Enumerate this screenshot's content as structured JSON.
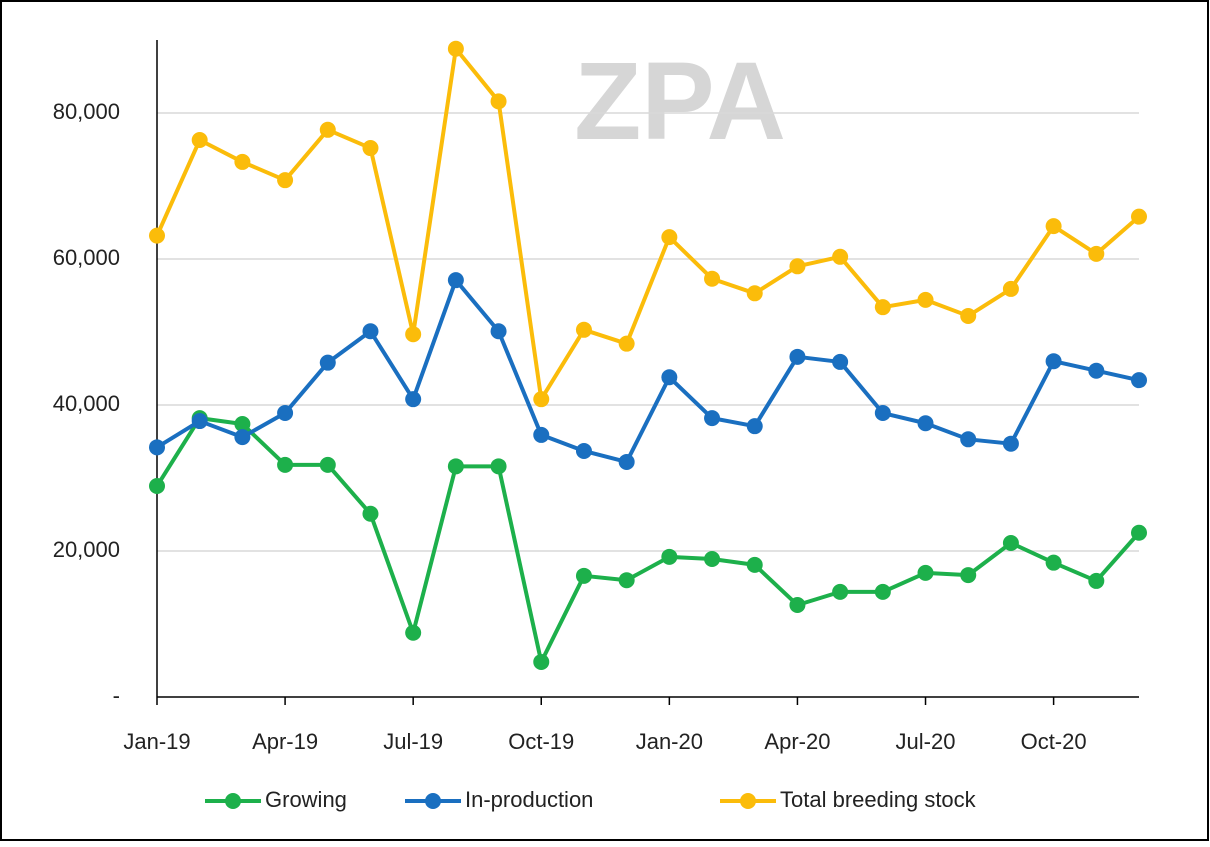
{
  "chart_data": {
    "type": "line",
    "watermark": "ZPA",
    "categories": [
      "Jan-19",
      null,
      null,
      "Apr-19",
      null,
      null,
      "Jul-19",
      null,
      null,
      "Oct-19",
      null,
      null,
      "Jan-20",
      null,
      null,
      "Apr-20",
      null,
      null,
      "Jul-20",
      null,
      null,
      "Oct-20",
      null,
      null
    ],
    "series": [
      {
        "name": "Growing",
        "color": "#1db04b",
        "values": [
          28900,
          38200,
          37400,
          31800,
          31800,
          25100,
          8800,
          31600,
          31600,
          4800,
          16600,
          16000,
          19200,
          18900,
          18100,
          12600,
          14400,
          14400,
          17000,
          16700,
          21100,
          18400,
          15900,
          22500
        ]
      },
      {
        "name": "In-production",
        "color": "#1a6fc0",
        "values": [
          34200,
          37800,
          35600,
          38900,
          45800,
          50100,
          40800,
          57100,
          50100,
          35900,
          33700,
          32200,
          43800,
          38200,
          37100,
          46600,
          45900,
          38900,
          37500,
          35300,
          34700,
          46000,
          44700,
          43400
        ]
      },
      {
        "name": "Total breeding stock",
        "color": "#fbbc0a",
        "values": [
          63200,
          76300,
          73300,
          70800,
          77700,
          75200,
          49700,
          88800,
          81600,
          40800,
          50300,
          48400,
          63000,
          57300,
          55300,
          59000,
          60300,
          53400,
          54400,
          52200,
          55900,
          64500,
          60700,
          65800
        ]
      }
    ],
    "ylim": [
      0,
      90000
    ],
    "yticks": [
      {
        "value": 0,
        "label": "-"
      },
      {
        "value": 20000,
        "label": "20,000"
      },
      {
        "value": 40000,
        "label": "40,000"
      },
      {
        "value": 60000,
        "label": "60,000"
      },
      {
        "value": 80000,
        "label": "80,000"
      }
    ],
    "grid": true,
    "legend": "bottom"
  }
}
